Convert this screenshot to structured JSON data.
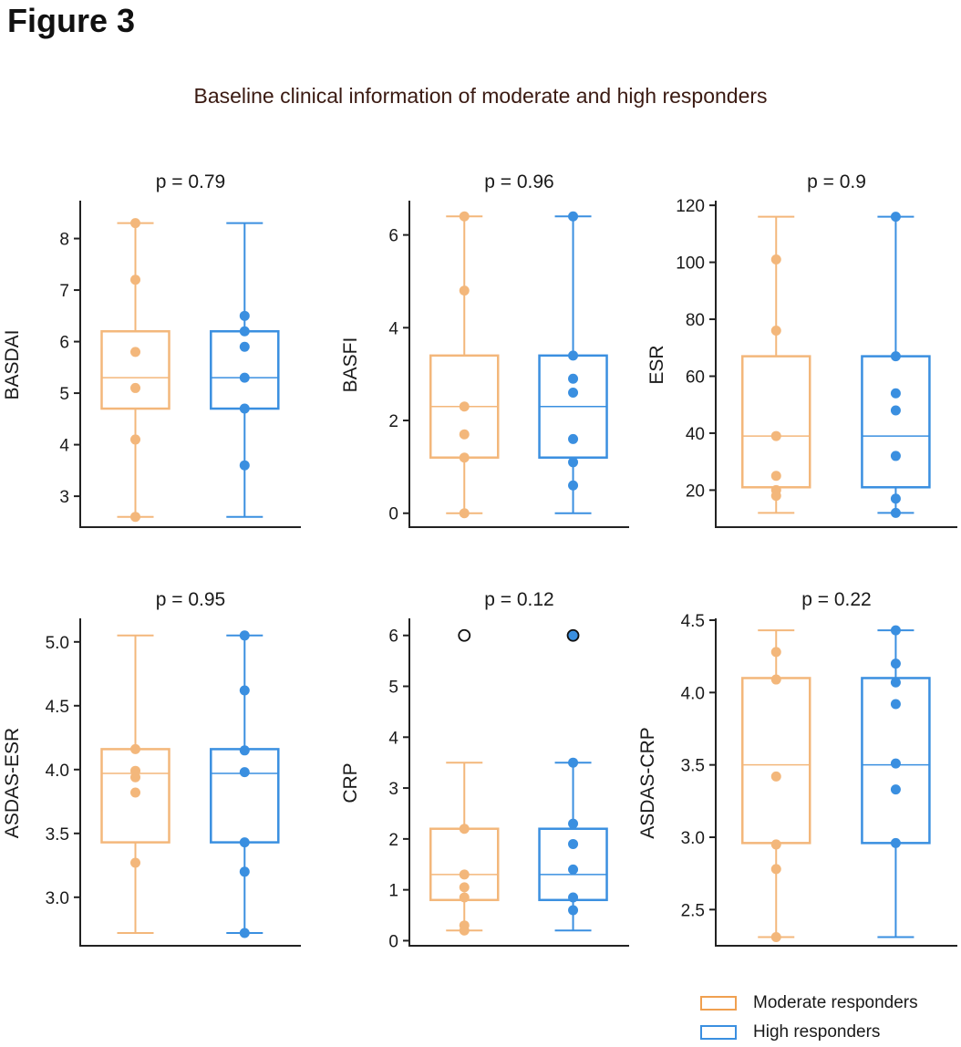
{
  "figure_label": "Figure 3",
  "title": "Baseline clinical information of moderate and high responders",
  "legend": {
    "moderate": {
      "label": "Moderate responders",
      "color": "#F0A050"
    },
    "high": {
      "label": "High responders",
      "color": "#3A8FE0"
    }
  },
  "chart_data": [
    {
      "type": "box",
      "title": "p = 0.79",
      "ylabel": "BASDAI",
      "ylim": [
        2.4,
        8.7
      ],
      "yticks": [
        3,
        4,
        5,
        6,
        7,
        8
      ],
      "tick_labels": [
        "3",
        "4",
        "5",
        "6",
        "7",
        "8"
      ],
      "groups": [
        {
          "name": "Moderate responders",
          "whisker_low": 2.6,
          "q1": 4.7,
          "median": 5.3,
          "q3": 6.2,
          "whisker_high": 8.3,
          "points": [
            2.6,
            4.1,
            5.1,
            5.8,
            7.2,
            8.3
          ],
          "outliers": []
        },
        {
          "name": "High responders",
          "whisker_low": 2.6,
          "q1": 4.7,
          "median": 5.3,
          "q3": 6.2,
          "whisker_high": 8.3,
          "points": [
            3.6,
            4.7,
            5.3,
            5.9,
            6.2,
            6.5
          ],
          "outliers": []
        }
      ]
    },
    {
      "type": "box",
      "title": "p = 0.96",
      "ylabel": "BASFI",
      "ylim": [
        -0.3,
        6.7
      ],
      "yticks": [
        0,
        2,
        4,
        6
      ],
      "tick_labels": [
        "0",
        "2",
        "4",
        "6"
      ],
      "groups": [
        {
          "name": "Moderate responders",
          "whisker_low": 0.0,
          "q1": 1.2,
          "median": 2.3,
          "q3": 3.4,
          "whisker_high": 6.4,
          "points": [
            0.0,
            1.2,
            1.7,
            2.3,
            4.8,
            6.4
          ],
          "outliers": []
        },
        {
          "name": "High responders",
          "whisker_low": 0.0,
          "q1": 1.2,
          "median": 2.3,
          "q3": 3.4,
          "whisker_high": 6.4,
          "points": [
            0.6,
            1.1,
            1.6,
            2.6,
            2.9,
            3.4,
            6.4
          ],
          "outliers": []
        }
      ]
    },
    {
      "type": "box",
      "title": "p = 0.9",
      "ylabel": "ESR",
      "ylim": [
        7,
        121
      ],
      "yticks": [
        20,
        40,
        60,
        80,
        100,
        120
      ],
      "tick_labels": [
        "20",
        "40",
        "60",
        "80",
        "100",
        "120"
      ],
      "groups": [
        {
          "name": "Moderate responders",
          "whisker_low": 12,
          "q1": 21,
          "median": 39,
          "q3": 67,
          "whisker_high": 116,
          "points": [
            18,
            20,
            25,
            39,
            76,
            101
          ],
          "outliers": []
        },
        {
          "name": "High responders",
          "whisker_low": 12,
          "q1": 21,
          "median": 39,
          "q3": 67,
          "whisker_high": 116,
          "points": [
            12,
            17,
            32,
            48,
            54,
            67,
            116
          ],
          "outliers": []
        }
      ]
    },
    {
      "type": "box",
      "title": "p = 0.95",
      "ylabel": "ASDAS-ESR",
      "ylim": [
        2.62,
        5.17
      ],
      "yticks": [
        3.0,
        3.5,
        4.0,
        4.5,
        5.0
      ],
      "tick_labels": [
        "3.0",
        "3.5",
        "4.0",
        "4.5",
        "5.0"
      ],
      "groups": [
        {
          "name": "Moderate responders",
          "whisker_low": 2.72,
          "q1": 3.43,
          "median": 3.97,
          "q3": 4.16,
          "whisker_high": 5.05,
          "points": [
            3.27,
            3.82,
            3.94,
            3.99,
            4.16
          ],
          "outliers": []
        },
        {
          "name": "High responders",
          "whisker_low": 2.72,
          "q1": 3.43,
          "median": 3.97,
          "q3": 4.16,
          "whisker_high": 5.05,
          "points": [
            2.72,
            3.2,
            3.43,
            3.98,
            4.15,
            4.62,
            5.05
          ],
          "outliers": []
        }
      ]
    },
    {
      "type": "box",
      "title": "p = 0.12",
      "ylabel": "CRP",
      "ylim": [
        -0.1,
        6.3
      ],
      "yticks": [
        0,
        1,
        2,
        3,
        4,
        5,
        6
      ],
      "tick_labels": [
        "0",
        "1",
        "2",
        "3",
        "4",
        "5",
        "6"
      ],
      "groups": [
        {
          "name": "Moderate responders",
          "whisker_low": 0.2,
          "q1": 0.8,
          "median": 1.3,
          "q3": 2.2,
          "whisker_high": 3.5,
          "points": [
            0.2,
            0.3,
            0.85,
            1.05,
            1.3,
            2.2
          ],
          "outliers": [
            6.0
          ]
        },
        {
          "name": "High responders",
          "whisker_low": 0.2,
          "q1": 0.8,
          "median": 1.3,
          "q3": 2.2,
          "whisker_high": 3.5,
          "points": [
            0.6,
            0.85,
            1.4,
            1.9,
            2.3,
            3.5
          ],
          "outliers": [
            6.0
          ]
        }
      ]
    },
    {
      "type": "box",
      "title": "p = 0.22",
      "ylabel": "ASDAS-CRP",
      "ylim": [
        2.25,
        4.5
      ],
      "yticks": [
        2.5,
        3.0,
        3.5,
        4.0,
        4.5
      ],
      "tick_labels": [
        "2.5",
        "3.0",
        "3.5",
        "4.0",
        "4.5"
      ],
      "groups": [
        {
          "name": "Moderate responders",
          "whisker_low": 2.31,
          "q1": 2.96,
          "median": 3.5,
          "q3": 4.1,
          "whisker_high": 4.43,
          "points": [
            2.31,
            2.78,
            2.95,
            3.42,
            4.09,
            4.28
          ],
          "outliers": []
        },
        {
          "name": "High responders",
          "whisker_low": 2.31,
          "q1": 2.96,
          "median": 3.5,
          "q3": 4.1,
          "whisker_high": 4.43,
          "points": [
            2.96,
            3.33,
            3.51,
            3.92,
            4.07,
            4.2,
            4.43
          ],
          "outliers": []
        }
      ]
    }
  ]
}
